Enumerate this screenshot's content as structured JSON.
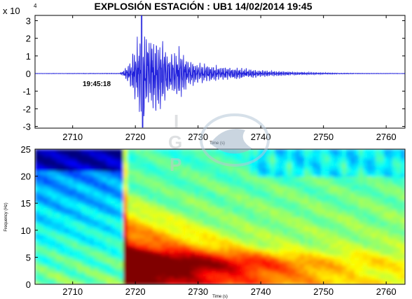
{
  "chart_data": [
    {
      "type": "line",
      "title": "EXPLOSIÓN  ESTACIÓN : UB1 14/02/2014  19:45",
      "xlabel": "Time (s)",
      "ylabel": "",
      "y_scale_label": "x 10",
      "y_scale_exponent": "4",
      "xlim": [
        2704,
        2763
      ],
      "ylim": [
        -3.1,
        3.3
      ],
      "x_ticks": [
        2710,
        2720,
        2730,
        2740,
        2750,
        2760
      ],
      "y_ticks": [
        -3,
        -2,
        -1,
        0,
        1,
        2,
        3
      ],
      "annotation": "19:45:18",
      "color": "#1f1fdc",
      "onset_time": 2718,
      "peak_time": 2721,
      "envelope": [
        [
          2704,
          0.01
        ],
        [
          2717.5,
          0.02
        ],
        [
          2718.0,
          0.15
        ],
        [
          2719.0,
          0.6
        ],
        [
          2720.0,
          1.5
        ],
        [
          2721.0,
          3.2
        ],
        [
          2722.0,
          2.2
        ],
        [
          2723.0,
          2.3
        ],
        [
          2724.0,
          2.0
        ],
        [
          2725.0,
          1.3
        ],
        [
          2726.0,
          1.2
        ],
        [
          2727.0,
          1.5
        ],
        [
          2728.0,
          0.9
        ],
        [
          2729.0,
          0.7
        ],
        [
          2730.0,
          0.6
        ],
        [
          2732.0,
          0.5
        ],
        [
          2735.0,
          0.35
        ],
        [
          2738.0,
          0.3
        ],
        [
          2740.0,
          0.2
        ],
        [
          2745.0,
          0.1
        ],
        [
          2750.0,
          0.05
        ],
        [
          2755.0,
          0.02
        ],
        [
          2763.0,
          0.01
        ]
      ]
    },
    {
      "type": "heatmap",
      "title": "",
      "xlabel": "Time (s)",
      "ylabel": "Frequency (Hz)",
      "xlim": [
        2704,
        2763
      ],
      "ylim": [
        0,
        25
      ],
      "x_ticks": [
        2710,
        2720,
        2730,
        2740,
        2750,
        2760
      ],
      "y_ticks": [
        0,
        5,
        10,
        15,
        20,
        25
      ],
      "colormap": "jet",
      "onset_time": 2718,
      "peak_frequency": 4
    }
  ],
  "logo": {
    "name": "igp-watermark",
    "letters": [
      "I",
      "G",
      "P"
    ]
  }
}
